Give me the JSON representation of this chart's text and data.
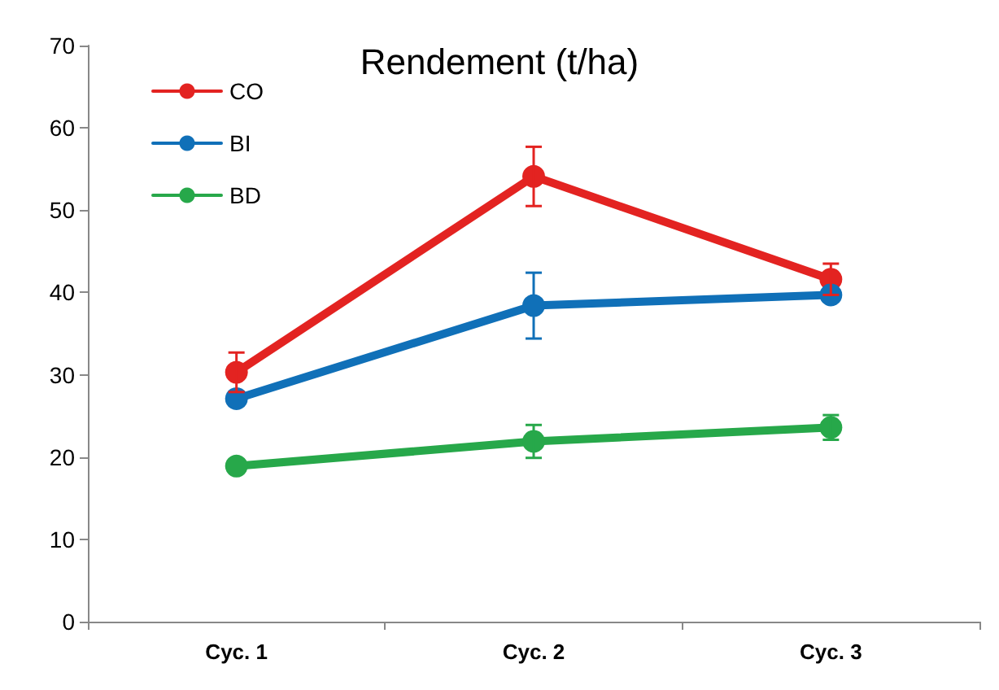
{
  "chart_data": {
    "type": "line",
    "title": "Rendement (t/ha)",
    "categories": [
      "Cyc. 1",
      "Cyc. 2",
      "Cyc. 3"
    ],
    "series": [
      {
        "name": "CO",
        "color": "#e32321",
        "values": [
          30.3,
          54.1,
          41.6
        ],
        "errors": [
          2.4,
          3.6,
          1.9
        ]
      },
      {
        "name": "BI",
        "color": "#1070b8",
        "values": [
          27.1,
          38.4,
          39.7
        ],
        "errors": [
          null,
          4,
          null
        ]
      },
      {
        "name": "BD",
        "color": "#27a84a",
        "values": [
          18.9,
          21.9,
          23.6
        ],
        "errors": [
          null,
          2,
          1.5
        ]
      }
    ],
    "ylim": [
      0,
      70
    ],
    "yticks": [
      0,
      10,
      20,
      30,
      40,
      50,
      60,
      70
    ],
    "grid": false,
    "legend": "top left",
    "marker": "circle",
    "line_style": "solid"
  }
}
